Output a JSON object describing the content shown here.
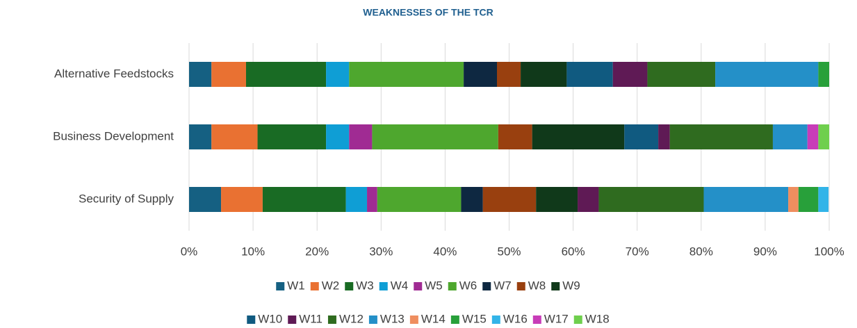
{
  "chart_data": {
    "type": "stacked_barh",
    "title": "WEAKNESSES OF THE TCR",
    "categories": [
      "Alternative Feedstocks",
      "Business Development",
      "Security of Supply"
    ],
    "series": [
      {
        "name": "W1",
        "color": "#156082",
        "values": [
          3.5,
          3.5,
          5.0
        ]
      },
      {
        "name": "W2",
        "color": "#e97132",
        "values": [
          5.4,
          7.2,
          6.5
        ]
      },
      {
        "name": "W3",
        "color": "#196b24",
        "values": [
          12.5,
          10.7,
          13.0
        ]
      },
      {
        "name": "W4",
        "color": "#0f9ed5",
        "values": [
          3.6,
          3.6,
          3.3
        ]
      },
      {
        "name": "W5",
        "color": "#a02b93",
        "values": [
          0,
          3.6,
          1.6
        ]
      },
      {
        "name": "W6",
        "color": "#4ea72e",
        "values": [
          17.9,
          19.7,
          13.1
        ]
      },
      {
        "name": "W7",
        "color": "#0e2841",
        "values": [
          5.2,
          0,
          3.4
        ]
      },
      {
        "name": "W8",
        "color": "#99400f",
        "values": [
          3.7,
          5.3,
          8.3
        ]
      },
      {
        "name": "W9",
        "color": "#10391a",
        "values": [
          7.2,
          14.4,
          6.5
        ]
      },
      {
        "name": "W10",
        "color": "#105a80",
        "values": [
          7.2,
          5.3,
          0
        ]
      },
      {
        "name": "W11",
        "color": "#5f1a55",
        "values": [
          5.4,
          1.8,
          3.3
        ]
      },
      {
        "name": "W12",
        "color": "#2f6b1f",
        "values": [
          10.6,
          16.1,
          16.4
        ]
      },
      {
        "name": "W13",
        "color": "#2490c8",
        "values": [
          16.1,
          5.4,
          13.2
        ]
      },
      {
        "name": "W14",
        "color": "#ef8e5f",
        "values": [
          0,
          0,
          1.6
        ]
      },
      {
        "name": "W15",
        "color": "#28a03a",
        "values": [
          1.7,
          0,
          3.1
        ]
      },
      {
        "name": "W16",
        "color": "#32b4e8",
        "values": [
          0,
          0,
          1.6
        ]
      },
      {
        "name": "W17",
        "color": "#c83cb8",
        "values": [
          0,
          1.7,
          0
        ]
      },
      {
        "name": "W18",
        "color": "#6fcf4d",
        "values": [
          0,
          1.7,
          0
        ]
      }
    ],
    "xlim": [
      0,
      100
    ],
    "xticks": [
      {
        "value": 0,
        "label": "0%"
      },
      {
        "value": 10,
        "label": "10%"
      },
      {
        "value": 20,
        "label": "20%"
      },
      {
        "value": 30,
        "label": "30%"
      },
      {
        "value": 40,
        "label": "40%"
      },
      {
        "value": 50,
        "label": "50%"
      },
      {
        "value": 60,
        "label": "60%"
      },
      {
        "value": 70,
        "label": "70%"
      },
      {
        "value": 80,
        "label": "80%"
      },
      {
        "value": 90,
        "label": "90%"
      },
      {
        "value": 100,
        "label": "100%"
      }
    ],
    "grid": true,
    "legend": "bottom"
  }
}
